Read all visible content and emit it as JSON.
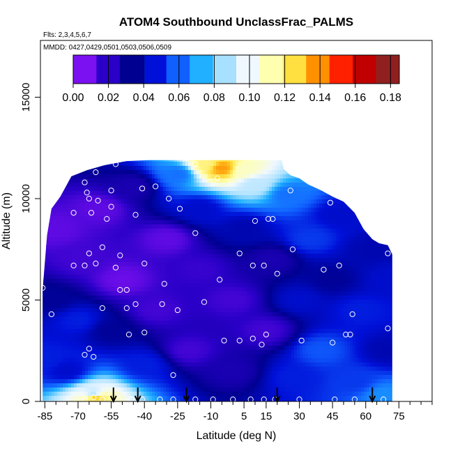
{
  "chart_data": {
    "type": "heatmap",
    "title": "ATOM4 Southbound UnclassFrac_PALMS",
    "annotations": [
      "Flts: 2,3,4,5,6,7",
      "MMDD: 0427,0429,0501,0503,0506,0509"
    ],
    "xlabel": "Latitude (deg N)",
    "ylabel": "Altitude (m)",
    "xlim": [
      -87,
      90
    ],
    "ylim": [
      0,
      17800
    ],
    "x_ticks": [
      -85,
      -70,
      -55,
      -40,
      -25,
      -10,
      5,
      15,
      30,
      45,
      60,
      75
    ],
    "x_tick_labels": [
      "-85",
      "-70",
      "-55",
      "-40",
      "-25",
      "-10",
      "5",
      "15",
      "30",
      "45",
      "60",
      "75"
    ],
    "x_minor_ticks": [
      -80,
      -75,
      -65,
      -60,
      -50,
      -45,
      -35,
      -30,
      -20,
      -15,
      -5,
      0,
      10,
      20,
      25,
      35,
      40,
      50,
      55,
      65,
      70,
      80,
      85,
      90
    ],
    "y_ticks": [
      0,
      5000,
      10000,
      15000
    ],
    "y_tick_labels": [
      "0",
      "5000",
      "10000",
      "15000"
    ],
    "colorbar": {
      "range": [
        0,
        0.185
      ],
      "tick_values": [
        0,
        0.02,
        0.04,
        0.06,
        0.08,
        0.1,
        0.12,
        0.14,
        0.16,
        0.18
      ],
      "tick_labels": [
        "0.00",
        "0.02",
        "0.04",
        "0.06",
        "0.08",
        "0.10",
        "0.12",
        "0.14",
        "0.16",
        "0.18"
      ],
      "colors": [
        "#7b10f0",
        "#2a00c8",
        "#000090",
        "#0010d8",
        "#1060ff",
        "#20b0ff",
        "#a8e0ff",
        "#f0f8ff",
        "#ffffb0",
        "#ffe040",
        "#ff9000",
        "#ff2000",
        "#c00000",
        "#902020"
      ]
    },
    "coverage": {
      "top": [
        [
          -86,
          5500
        ],
        [
          -84,
          8200
        ],
        [
          -82,
          9500
        ],
        [
          -78,
          10100
        ],
        [
          -73,
          11100
        ],
        [
          -66,
          11400
        ],
        [
          -58,
          11650
        ],
        [
          -48,
          11850
        ],
        [
          -38,
          11900
        ],
        [
          -20,
          11900
        ],
        [
          0,
          11900
        ],
        [
          22,
          11900
        ],
        [
          23,
          11450
        ],
        [
          26,
          11150
        ],
        [
          30,
          11000
        ],
        [
          34,
          10700
        ],
        [
          40,
          10400
        ],
        [
          45,
          10100
        ],
        [
          50,
          9850
        ],
        [
          55,
          9300
        ],
        [
          59,
          8500
        ],
        [
          63,
          8000
        ],
        [
          66,
          7800
        ],
        [
          70,
          7700
        ],
        [
          72,
          7250
        ]
      ],
      "floor": 0
    },
    "color_field": [
      {
        "x": -84,
        "y": 2000,
        "v": 0.045
      },
      {
        "x": -82,
        "y": 5000,
        "v": 0.03
      },
      {
        "x": -80,
        "y": 8500,
        "v": 0.005
      },
      {
        "x": -75,
        "y": 1500,
        "v": 0.04
      },
      {
        "x": -70,
        "y": 4000,
        "v": 0.045
      },
      {
        "x": -68,
        "y": 7000,
        "v": 0.01
      },
      {
        "x": -63,
        "y": 400,
        "v": 0.09
      },
      {
        "x": -62,
        "y": 200,
        "v": 0.13
      },
      {
        "x": -60,
        "y": 9500,
        "v": 0.005
      },
      {
        "x": -55,
        "y": 3500,
        "v": 0.03
      },
      {
        "x": -50,
        "y": 6000,
        "v": 0.003
      },
      {
        "x": -45,
        "y": 10600,
        "v": 0.02
      },
      {
        "x": -40,
        "y": 1800,
        "v": 0.045
      },
      {
        "x": -35,
        "y": 4500,
        "v": 0.01
      },
      {
        "x": -30,
        "y": 8000,
        "v": 0.005
      },
      {
        "x": -25,
        "y": 11200,
        "v": 0.06
      },
      {
        "x": -20,
        "y": 2500,
        "v": 0.01
      },
      {
        "x": -15,
        "y": 6500,
        "v": 0.012
      },
      {
        "x": -15,
        "y": 9500,
        "v": 0.04
      },
      {
        "x": -12,
        "y": 11700,
        "v": 0.12
      },
      {
        "x": -5,
        "y": 11500,
        "v": 0.14
      },
      {
        "x": 5,
        "y": 11400,
        "v": 0.11
      },
      {
        "x": 0,
        "y": 1500,
        "v": 0.02
      },
      {
        "x": 0,
        "y": 5000,
        "v": 0.01
      },
      {
        "x": 5,
        "y": 8500,
        "v": 0.035
      },
      {
        "x": 10,
        "y": 10700,
        "v": 0.09
      },
      {
        "x": 15,
        "y": 3500,
        "v": 0.01
      },
      {
        "x": 18,
        "y": 7000,
        "v": 0.02
      },
      {
        "x": 25,
        "y": 10200,
        "v": 0.06
      },
      {
        "x": 28,
        "y": 1200,
        "v": 0.045
      },
      {
        "x": 30,
        "y": 5000,
        "v": 0.04
      },
      {
        "x": 35,
        "y": 8000,
        "v": 0.05
      },
      {
        "x": 40,
        "y": 2500,
        "v": 0.055
      },
      {
        "x": 45,
        "y": 6000,
        "v": 0.03
      },
      {
        "x": 48,
        "y": 9200,
        "v": 0.04
      },
      {
        "x": 55,
        "y": 1000,
        "v": 0.05
      },
      {
        "x": 58,
        "y": 4500,
        "v": 0.045
      },
      {
        "x": 62,
        "y": 7500,
        "v": 0.035
      },
      {
        "x": 68,
        "y": 300,
        "v": 0.065
      },
      {
        "x": 70,
        "y": 2500,
        "v": 0.035
      },
      {
        "x": 71,
        "y": 6000,
        "v": 0.04
      }
    ],
    "sample_points": [
      {
        "x": -53,
        "y": 11700
      },
      {
        "x": -62,
        "y": 11300
      },
      {
        "x": -67,
        "y": 10800
      },
      {
        "x": -55,
        "y": 10400
      },
      {
        "x": -41,
        "y": 10500
      },
      {
        "x": -35,
        "y": 10600
      },
      {
        "x": -29,
        "y": 10000
      },
      {
        "x": -66,
        "y": 10300
      },
      {
        "x": -65,
        "y": 10000
      },
      {
        "x": -61,
        "y": 9900
      },
      {
        "x": -84,
        "y": 9500
      },
      {
        "x": -72,
        "y": 9300
      },
      {
        "x": -64,
        "y": 9300
      },
      {
        "x": -55,
        "y": 9600
      },
      {
        "x": -44,
        "y": 9200
      },
      {
        "x": -24,
        "y": 9500
      },
      {
        "x": -57,
        "y": 9000
      },
      {
        "x": -17,
        "y": 8300
      },
      {
        "x": -59,
        "y": 7600
      },
      {
        "x": -65,
        "y": 7300
      },
      {
        "x": -51,
        "y": 7200
      },
      {
        "x": -67,
        "y": 6700
      },
      {
        "x": -62,
        "y": 6800
      },
      {
        "x": -53,
        "y": 6600
      },
      {
        "x": -72,
        "y": 6700
      },
      {
        "x": -40,
        "y": 6800
      },
      {
        "x": -31,
        "y": 5800
      },
      {
        "x": -48,
        "y": 5500
      },
      {
        "x": -51,
        "y": 5500
      },
      {
        "x": -86,
        "y": 5600
      },
      {
        "x": -48,
        "y": 4600
      },
      {
        "x": -59,
        "y": 4600
      },
      {
        "x": -44,
        "y": 4800
      },
      {
        "x": -32,
        "y": 4800
      },
      {
        "x": -25,
        "y": 4500
      },
      {
        "x": -13,
        "y": 4900
      },
      {
        "x": -82,
        "y": 4300
      },
      {
        "x": -6,
        "y": 6000
      },
      {
        "x": 3,
        "y": 7300
      },
      {
        "x": 9,
        "y": 6700
      },
      {
        "x": 14,
        "y": 6700
      },
      {
        "x": 16,
        "y": 9000
      },
      {
        "x": 18,
        "y": 9000
      },
      {
        "x": 20,
        "y": 6300
      },
      {
        "x": 27,
        "y": 7500
      },
      {
        "x": 41,
        "y": 6500
      },
      {
        "x": 48,
        "y": 6700
      },
      {
        "x": 26,
        "y": 10400
      },
      {
        "x": 44,
        "y": 9800
      },
      {
        "x": 54,
        "y": 9700
      },
      {
        "x": -17,
        "y": 11700
      },
      {
        "x": -7,
        "y": 11000
      },
      {
        "x": 10,
        "y": 8900
      },
      {
        "x": 70,
        "y": 7300
      },
      {
        "x": -47,
        "y": 3300
      },
      {
        "x": -40,
        "y": 3400
      },
      {
        "x": -4,
        "y": 3000
      },
      {
        "x": 3,
        "y": 3000
      },
      {
        "x": 9,
        "y": 3100
      },
      {
        "x": 13,
        "y": 2800
      },
      {
        "x": 15,
        "y": 3300
      },
      {
        "x": 31,
        "y": 3000
      },
      {
        "x": 45,
        "y": 2900
      },
      {
        "x": 51,
        "y": 3300
      },
      {
        "x": 53,
        "y": 3300
      },
      {
        "x": 54,
        "y": 4300
      },
      {
        "x": 70,
        "y": 3600
      },
      {
        "x": -65,
        "y": 2600
      },
      {
        "x": -67,
        "y": 2300
      },
      {
        "x": -63,
        "y": 2200
      },
      {
        "x": -27,
        "y": 1300
      },
      {
        "x": -67,
        "y": 100
      },
      {
        "x": -63,
        "y": 200
      },
      {
        "x": -59,
        "y": 100
      },
      {
        "x": -52,
        "y": 100
      },
      {
        "x": -46,
        "y": 100
      },
      {
        "x": -41,
        "y": 100
      },
      {
        "x": -33,
        "y": 100
      },
      {
        "x": -27,
        "y": 100
      },
      {
        "x": -17,
        "y": 100
      },
      {
        "x": -9,
        "y": 100
      },
      {
        "x": 0,
        "y": 100
      },
      {
        "x": 8,
        "y": 100
      },
      {
        "x": 14,
        "y": 100
      },
      {
        "x": 19,
        "y": 100
      },
      {
        "x": 30,
        "y": 100
      },
      {
        "x": 46,
        "y": 100
      },
      {
        "x": 55,
        "y": 100
      },
      {
        "x": 68,
        "y": 100
      }
    ],
    "flight_markers": [
      -54,
      -43,
      -21,
      20,
      63
    ]
  }
}
